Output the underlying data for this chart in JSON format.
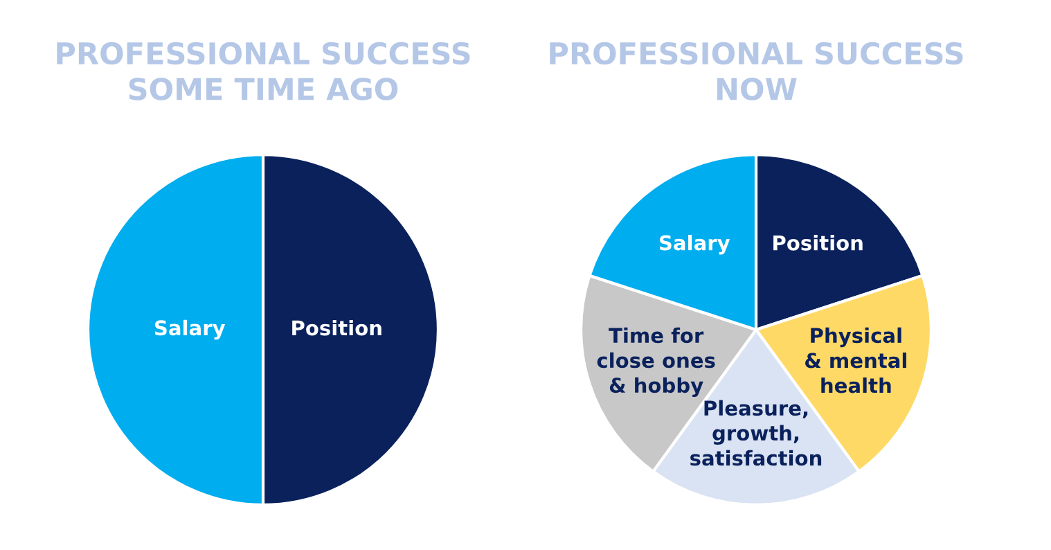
{
  "chart_data": [
    {
      "type": "pie",
      "title": "PROFESSIONAL SUCCESS\nSOME TIME AGO",
      "categories": [
        "Position",
        "Salary"
      ],
      "values": [
        50,
        50
      ],
      "colors": [
        "#0a215c",
        "#00adef"
      ]
    },
    {
      "type": "pie",
      "title": "PROFESSIONAL SUCCESS\nNOW",
      "categories": [
        "Position",
        "Physical\n& mental\nhealth",
        "Pleasure,\ngrowth,\nsatisfaction",
        "Time for\nclose ones\n& hobby",
        "Salary"
      ],
      "values": [
        20,
        20,
        20,
        20,
        20
      ],
      "colors": [
        "#0a215c",
        "#ffd966",
        "#dae3f3",
        "#c8c8c8",
        "#00adef"
      ]
    }
  ]
}
